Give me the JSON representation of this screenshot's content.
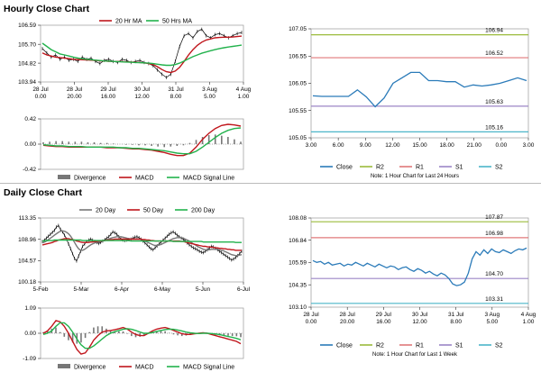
{
  "sections": {
    "hourly_title": "Hourly Close Chart",
    "daily_title": "Daily Close Chart"
  },
  "colors": {
    "price": "#000000",
    "ma1": "#c0161c",
    "ma2": "#22b24c",
    "close_line": "#2b7bb9",
    "r2": "#9bbb3b",
    "r1": "#e0787a",
    "s1": "#9b86c6",
    "s2": "#4bb6c9",
    "hist": "#777777",
    "border": "#999999"
  },
  "chart_data": [
    {
      "id": "hourly_price",
      "type": "line",
      "title": "Hourly price with moving averages",
      "legend": [
        "20 Hr MA",
        "50 Hrs MA"
      ],
      "yticks": [
        "106.59",
        "105.70",
        "104.82",
        "103.94"
      ],
      "ylim": [
        103.94,
        106.59
      ],
      "xticks": [
        [
          "28 Jul",
          "0.00"
        ],
        [
          "28 Jul",
          "20.00"
        ],
        [
          "29 Jul",
          "16.00"
        ],
        [
          "30 Jul",
          "12.00"
        ],
        [
          "31 Jul",
          "8.00"
        ],
        [
          "3 Aug",
          "5.00"
        ],
        [
          "4 Aug",
          "1.00"
        ]
      ],
      "price": [
        105.5,
        105.3,
        105.1,
        105.2,
        105.0,
        105.1,
        104.95,
        105.0,
        104.9,
        105.1,
        105.0,
        105.05,
        104.9,
        104.8,
        104.95,
        105.0,
        104.9,
        104.85,
        105.0,
        104.95,
        104.85,
        104.9,
        104.95,
        104.85,
        104.8,
        104.7,
        104.5,
        104.3,
        104.15,
        104.3,
        104.9,
        105.6,
        106.1,
        106.2,
        106.0,
        106.3,
        106.4,
        106.1,
        106.0,
        106.15,
        106.2,
        106.1,
        106.0,
        106.1,
        106.2,
        106.25
      ],
      "ma20": [
        105.3,
        105.2,
        105.15,
        105.1,
        105.08,
        105.05,
        105.03,
        105.0,
        104.99,
        104.98,
        104.97,
        104.96,
        104.95,
        104.93,
        104.92,
        104.9,
        104.9,
        104.9,
        104.89,
        104.88,
        104.87,
        104.86,
        104.85,
        104.83,
        104.8,
        104.75,
        104.65,
        104.52,
        104.42,
        104.38,
        104.45,
        104.62,
        104.9,
        105.2,
        105.45,
        105.65,
        105.8,
        105.9,
        105.95,
        106.0,
        106.02,
        106.03,
        106.03,
        106.04,
        106.06,
        106.08
      ],
      "ma50": [
        105.75,
        105.6,
        105.45,
        105.35,
        105.25,
        105.2,
        105.15,
        105.1,
        105.06,
        105.02,
        105.0,
        104.98,
        104.96,
        104.94,
        104.92,
        104.91,
        104.9,
        104.89,
        104.88,
        104.87,
        104.86,
        104.85,
        104.84,
        104.83,
        104.82,
        104.8,
        104.77,
        104.74,
        104.72,
        104.72,
        104.75,
        104.82,
        104.92,
        105.02,
        105.12,
        105.2,
        105.28,
        105.34,
        105.4,
        105.45,
        105.5,
        105.54,
        105.57,
        105.6,
        105.63,
        105.66
      ]
    },
    {
      "id": "hourly_macd",
      "type": "line",
      "title": "Hourly MACD",
      "legend": [
        "Divergence",
        "MACD",
        "MACD Signal Line"
      ],
      "yticks": [
        "0.42",
        "0.00",
        "-0.42"
      ],
      "ylim": [
        -0.42,
        0.42
      ],
      "macd": [
        -0.02,
        -0.03,
        -0.04,
        -0.04,
        -0.05,
        -0.05,
        -0.05,
        -0.05,
        -0.05,
        -0.05,
        -0.06,
        -0.06,
        -0.06,
        -0.07,
        -0.08,
        -0.08,
        -0.09,
        -0.1,
        -0.12,
        -0.14,
        -0.17,
        -0.19,
        -0.19,
        -0.15,
        -0.05,
        0.08,
        0.18,
        0.26,
        0.31,
        0.33,
        0.32,
        0.3
      ],
      "signal": [
        -0.01,
        -0.02,
        -0.03,
        -0.03,
        -0.04,
        -0.04,
        -0.04,
        -0.05,
        -0.05,
        -0.05,
        -0.05,
        -0.05,
        -0.06,
        -0.06,
        -0.07,
        -0.07,
        -0.08,
        -0.09,
        -0.1,
        -0.11,
        -0.13,
        -0.15,
        -0.16,
        -0.16,
        -0.12,
        -0.05,
        0.03,
        0.11,
        0.18,
        0.23,
        0.26,
        0.27
      ],
      "divergence": [
        0.03,
        0.04,
        0.05,
        0.05,
        0.04,
        0.04,
        0.04,
        0.03,
        0.03,
        0.02,
        0.02,
        0.01,
        0.0,
        -0.01,
        -0.01,
        -0.02,
        -0.02,
        -0.03,
        -0.04,
        -0.05,
        -0.04,
        -0.03,
        -0.02,
        0.02,
        0.07,
        0.12,
        0.15,
        0.16,
        0.14,
        0.12,
        0.08,
        0.04
      ]
    },
    {
      "id": "hourly_close_levels",
      "type": "line",
      "title": "Hourly close with pivot levels",
      "legend": [
        "Close",
        "R2",
        "R1",
        "S1",
        "S2"
      ],
      "note": "Note: 1 Hour Chart for Last 24 Hours",
      "yticks": [
        "107.05",
        "106.55",
        "106.05",
        "105.55",
        "105.05"
      ],
      "ylim": [
        105.05,
        107.05
      ],
      "xticks": [
        "3.00",
        "6.00",
        "9.00",
        "12.00",
        "15.00",
        "18.00",
        "21.00",
        "0.00",
        "3.00"
      ],
      "x": [
        3,
        4,
        5,
        6,
        7,
        8,
        9,
        10,
        11,
        12,
        13,
        14,
        15,
        16,
        17,
        18,
        19,
        20,
        21,
        22,
        23,
        24,
        25,
        26,
        27
      ],
      "close": [
        105.82,
        105.81,
        105.81,
        105.81,
        105.81,
        105.93,
        105.8,
        105.62,
        105.78,
        106.05,
        106.15,
        106.25,
        106.25,
        106.1,
        106.1,
        106.08,
        106.08,
        105.98,
        106.02,
        106.0,
        106.02,
        106.05,
        106.1,
        106.15,
        106.1
      ],
      "levels": {
        "R2": 106.94,
        "R1": 106.52,
        "S1": 105.63,
        "S2": 105.16
      },
      "level_labels": [
        "106.94",
        "106.52",
        "105.63",
        "105.16"
      ]
    },
    {
      "id": "daily_price",
      "type": "line",
      "title": "Daily price with moving averages",
      "legend": [
        "20 Day",
        "50 Day",
        "200 Day"
      ],
      "yticks": [
        "113.35",
        "108.96",
        "104.57",
        "100.18"
      ],
      "ylim": [
        100.18,
        113.35
      ],
      "xticks": [
        "5-Feb",
        "5-Mar",
        "6-Apr",
        "6-May",
        "5-Jun",
        "6-Jul"
      ],
      "price": [
        108.5,
        108.8,
        109.2,
        109.6,
        110.0,
        110.4,
        110.8,
        111.5,
        111.8,
        111.0,
        110.5,
        109.8,
        109.0,
        108.0,
        107.0,
        106.0,
        105.0,
        104.5,
        105.5,
        106.5,
        107.5,
        108.0,
        108.5,
        108.8,
        109.0,
        108.8,
        108.5,
        108.3,
        108.1,
        108.3,
        108.6,
        108.9,
        109.2,
        109.5,
        110.0,
        110.5,
        110.3,
        110.0,
        109.5,
        109.0,
        108.8,
        108.7,
        108.8,
        108.9,
        109.0,
        109.2,
        109.4,
        109.5,
        109.3,
        109.0,
        108.6,
        108.2,
        107.8,
        107.4,
        107.0,
        106.8,
        107.2,
        107.6,
        108.0,
        108.4,
        108.8,
        109.2,
        109.6,
        110.0,
        110.3,
        110.5,
        110.2,
        109.8,
        109.5,
        109.2,
        109.0,
        108.6,
        108.2,
        107.8,
        107.5,
        107.2,
        107.0,
        106.8,
        106.5,
        106.3,
        106.2,
        106.5,
        106.8,
        107.2,
        107.5,
        107.4,
        107.1,
        106.8,
        106.5,
        106.2,
        105.9,
        105.6,
        105.3,
        105.0,
        104.7,
        104.9,
        105.2,
        105.6,
        106.0,
        106.5
      ],
      "ma20": [
        108.2,
        108.4,
        108.6,
        108.9,
        109.2,
        109.5,
        109.8,
        110.1,
        110.4,
        110.6,
        110.7,
        110.6,
        110.4,
        110.1,
        109.6,
        109.0,
        108.3,
        107.6,
        107.0,
        106.7,
        106.7,
        106.9,
        107.2,
        107.5,
        107.8,
        108.0,
        108.2,
        108.3,
        108.4,
        108.5,
        108.6,
        108.7,
        108.9,
        109.0,
        109.2,
        109.3,
        109.4,
        109.5,
        109.5,
        109.5,
        109.4,
        109.3,
        109.2,
        109.1,
        109.0,
        109.0,
        109.0,
        109.0,
        109.0,
        108.9,
        108.8,
        108.6,
        108.4,
        108.2,
        108.0,
        107.8,
        107.7,
        107.7,
        107.8,
        107.9,
        108.1,
        108.3,
        108.5,
        108.7,
        108.9,
        109.1,
        109.2,
        109.3,
        109.3,
        109.3,
        109.2,
        109.0,
        108.8,
        108.6,
        108.3,
        108.0,
        107.8,
        107.5,
        107.3,
        107.1,
        106.9,
        106.8,
        106.8,
        106.8,
        106.9,
        106.9,
        106.9,
        106.9,
        106.8,
        106.7,
        106.6,
        106.4,
        106.2,
        106.0,
        105.8,
        105.7,
        105.6,
        105.6,
        105.7,
        105.8
      ],
      "ma50": [
        107.8,
        107.9,
        108.0,
        108.1,
        108.2,
        108.3,
        108.5,
        108.6,
        108.8,
        108.9,
        109.0,
        109.1,
        109.1,
        109.1,
        109.0,
        108.9,
        108.8,
        108.6,
        108.5,
        108.4,
        108.3,
        108.3,
        108.3,
        108.3,
        108.4,
        108.4,
        108.5,
        108.5,
        108.6,
        108.6,
        108.7,
        108.7,
        108.8,
        108.8,
        108.9,
        108.9,
        109.0,
        109.0,
        109.0,
        109.0,
        109.0,
        109.0,
        109.0,
        109.0,
        109.0,
        109.0,
        109.0,
        109.0,
        109.0,
        109.0,
        108.9,
        108.9,
        108.8,
        108.8,
        108.7,
        108.7,
        108.6,
        108.6,
        108.6,
        108.6,
        108.6,
        108.6,
        108.6,
        108.6,
        108.6,
        108.6,
        108.6,
        108.6,
        108.6,
        108.5,
        108.5,
        108.4,
        108.3,
        108.2,
        108.1,
        108.0,
        107.9,
        107.8,
        107.7,
        107.6,
        107.5,
        107.5,
        107.4,
        107.4,
        107.3,
        107.3,
        107.2,
        107.2,
        107.1,
        107.1,
        107.0,
        107.0,
        106.9,
        106.9,
        106.8,
        106.8,
        106.7,
        106.7,
        106.7,
        106.7
      ],
      "ma200": [
        108.6,
        108.6,
        108.7,
        108.7,
        108.7,
        108.7,
        108.8,
        108.8,
        108.8,
        108.8,
        108.8,
        108.8,
        108.8,
        108.8,
        108.8,
        108.8,
        108.8,
        108.8,
        108.8,
        108.8,
        108.7,
        108.7,
        108.7,
        108.7,
        108.7,
        108.7,
        108.7,
        108.7,
        108.7,
        108.7,
        108.7,
        108.7,
        108.7,
        108.7,
        108.7,
        108.7,
        108.7,
        108.7,
        108.7,
        108.7,
        108.7,
        108.7,
        108.7,
        108.7,
        108.6,
        108.6,
        108.6,
        108.6,
        108.6,
        108.6,
        108.6,
        108.6,
        108.6,
        108.6,
        108.6,
        108.6,
        108.6,
        108.6,
        108.6,
        108.6,
        108.6,
        108.6,
        108.6,
        108.6,
        108.6,
        108.5,
        108.5,
        108.5,
        108.5,
        108.5,
        108.5,
        108.5,
        108.5,
        108.5,
        108.5,
        108.5,
        108.5,
        108.5,
        108.5,
        108.5,
        108.4,
        108.4,
        108.4,
        108.4,
        108.4,
        108.4,
        108.4,
        108.4,
        108.4,
        108.4,
        108.4,
        108.4,
        108.4,
        108.4,
        108.4,
        108.4,
        108.3,
        108.3,
        108.3,
        108.3
      ]
    },
    {
      "id": "daily_macd",
      "type": "line",
      "title": "Daily MACD",
      "legend": [
        "Divergence",
        "MACD",
        "MACD Signal Line"
      ],
      "yticks": [
        "1.09",
        "0.00",
        "-1.09"
      ],
      "ylim": [
        -1.09,
        1.09
      ],
      "macd": [
        0.0,
        0.1,
        0.3,
        0.55,
        0.5,
        0.3,
        0.0,
        -0.35,
        -0.7,
        -0.9,
        -0.85,
        -0.6,
        -0.3,
        -0.1,
        0.05,
        0.1,
        0.12,
        0.15,
        0.2,
        0.25,
        0.18,
        0.05,
        -0.05,
        -0.1,
        -0.1,
        0.0,
        0.1,
        0.18,
        0.22,
        0.25,
        0.2,
        0.12,
        0.05,
        -0.02,
        -0.05,
        -0.05,
        -0.02,
        0.0,
        0.02,
        0.0,
        -0.05,
        -0.1,
        -0.15,
        -0.2,
        -0.25,
        -0.3,
        -0.35,
        -0.45
      ],
      "signal": [
        -0.05,
        0.0,
        0.1,
        0.3,
        0.45,
        0.45,
        0.3,
        0.05,
        -0.25,
        -0.5,
        -0.65,
        -0.65,
        -0.55,
        -0.4,
        -0.25,
        -0.1,
        0.0,
        0.07,
        0.12,
        0.17,
        0.2,
        0.17,
        0.12,
        0.05,
        0.0,
        0.0,
        0.03,
        0.08,
        0.12,
        0.16,
        0.18,
        0.17,
        0.14,
        0.1,
        0.05,
        0.02,
        0.0,
        -0.01,
        0.0,
        0.0,
        -0.01,
        -0.03,
        -0.06,
        -0.1,
        -0.14,
        -0.18,
        -0.22,
        -0.28
      ],
      "divergence": [
        0.05,
        0.1,
        0.2,
        0.25,
        0.05,
        -0.15,
        -0.3,
        -0.4,
        -0.45,
        -0.4,
        -0.2,
        0.05,
        0.25,
        0.3,
        0.3,
        0.2,
        0.12,
        0.08,
        0.08,
        0.08,
        -0.02,
        -0.12,
        -0.17,
        -0.15,
        -0.1,
        0.0,
        0.07,
        0.1,
        0.1,
        0.09,
        0.02,
        -0.05,
        -0.09,
        -0.12,
        -0.1,
        -0.07,
        -0.02,
        0.01,
        0.02,
        0.0,
        -0.04,
        -0.07,
        -0.09,
        -0.1,
        -0.11,
        -0.12,
        -0.13,
        -0.17
      ]
    },
    {
      "id": "daily_close_levels",
      "type": "line",
      "title": "Weekly hourly close with pivot levels",
      "legend": [
        "Close",
        "R2",
        "R1",
        "S1",
        "S2"
      ],
      "note": "Note: 1 Hour Chart for Last 1 Week",
      "yticks": [
        "108.08",
        "106.84",
        "105.59",
        "104.35",
        "103.10"
      ],
      "ylim": [
        103.1,
        108.08
      ],
      "xticks": [
        [
          "28 Jul",
          "0.00"
        ],
        [
          "28 Jul",
          "20.00"
        ],
        [
          "29 Jul",
          "16.00"
        ],
        [
          "30 Jul",
          "12.00"
        ],
        [
          "31 Jul",
          "8.00"
        ],
        [
          "3 Aug",
          "5.00"
        ],
        [
          "4 Aug",
          "1.00"
        ]
      ],
      "close": [
        105.7,
        105.6,
        105.65,
        105.5,
        105.6,
        105.45,
        105.5,
        105.55,
        105.4,
        105.5,
        105.45,
        105.6,
        105.5,
        105.4,
        105.55,
        105.45,
        105.35,
        105.5,
        105.4,
        105.3,
        105.4,
        105.35,
        105.2,
        105.3,
        105.35,
        105.2,
        105.1,
        105.25,
        105.15,
        105.0,
        105.1,
        104.95,
        104.85,
        105.0,
        104.9,
        104.7,
        104.4,
        104.3,
        104.35,
        104.5,
        105.0,
        105.8,
        106.2,
        106.0,
        106.3,
        106.1,
        106.35,
        106.2,
        106.15,
        106.3,
        106.2,
        106.1,
        106.25,
        106.35,
        106.3,
        106.4
      ],
      "levels": {
        "R2": 107.87,
        "R1": 106.98,
        "S1": 104.7,
        "S2": 103.31
      },
      "level_labels": [
        "107.87",
        "106.98",
        "104.70",
        "103.31"
      ]
    }
  ]
}
